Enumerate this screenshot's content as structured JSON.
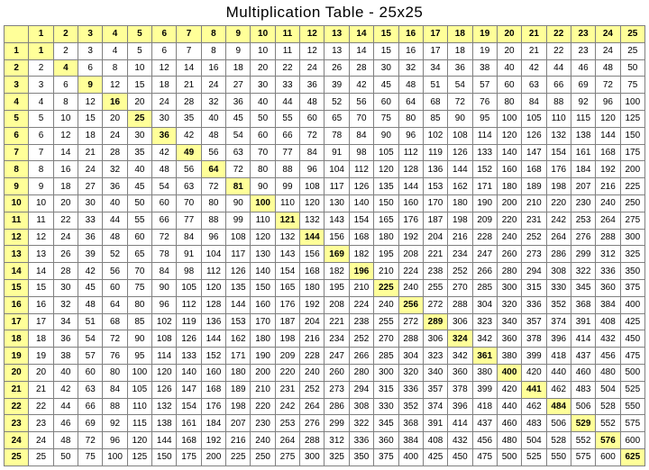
{
  "title": "Multiplication Table - 25x25",
  "size": 25,
  "colors": {
    "header_bg": "#ffff99",
    "square_bg": "#ffff99",
    "cell_bg": "#ffffff",
    "border": "#808080"
  },
  "font": {
    "title_size": 17,
    "cell_size": 10,
    "family": "Verdana"
  }
}
